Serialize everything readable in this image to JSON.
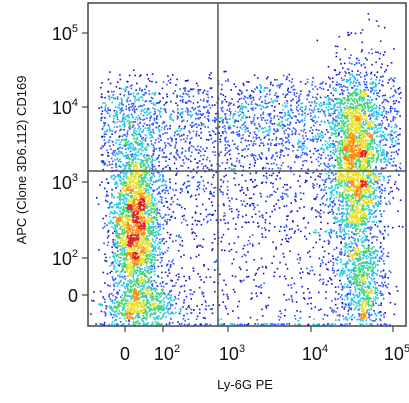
{
  "chart_data": {
    "type": "scatter",
    "plot_style": "flow-cytometry pseudocolor density plot",
    "xlabel": "Ly-6G PE",
    "ylabel": "APC (Clone 3D6.112) CD169",
    "x_scale": "biexponential (log with linear region near 0)",
    "y_scale": "biexponential (log with linear region near 0)",
    "xlim": [
      "-50",
      "150000"
    ],
    "ylim": [
      "-50",
      "150000"
    ],
    "x_ticks": [
      {
        "value": 0,
        "label": "0"
      },
      {
        "value": 100,
        "label": "10",
        "sup": "2"
      },
      {
        "value": 1000,
        "label": "10",
        "sup": "3"
      },
      {
        "value": 10000,
        "label": "10",
        "sup": "4"
      },
      {
        "value": 100000,
        "label": "10",
        "sup": "5"
      }
    ],
    "y_ticks": [
      {
        "value": 0,
        "label": "0"
      },
      {
        "value": 100,
        "label": "10",
        "sup": "2"
      },
      {
        "value": 1000,
        "label": "10",
        "sup": "3"
      },
      {
        "value": 10000,
        "label": "10",
        "sup": "4"
      },
      {
        "value": 100000,
        "label": "10",
        "sup": "5"
      }
    ],
    "quadrant_gates": {
      "x": 700,
      "y": 1400
    },
    "density_colors": [
      "#1010d0",
      "#2a55ff",
      "#22c8e6",
      "#3fd66f",
      "#e8e020",
      "#ff8c10",
      "#e02020"
    ],
    "populations": [
      {
        "description": "Ly-6G negative / CD169 low cluster",
        "x_center": 50,
        "y_center": 300,
        "density": "highest"
      },
      {
        "description": "Ly-6G positive / CD169 intermediate-high cluster",
        "x_center": 35000,
        "y_center": 2000,
        "density": "high"
      },
      {
        "description": "sparse scatter spanning upper region",
        "x_range": [
          0,
          80000
        ],
        "y_range": [
          1000,
          20000
        ],
        "density": "low"
      }
    ],
    "grid": false,
    "legend": "none"
  }
}
